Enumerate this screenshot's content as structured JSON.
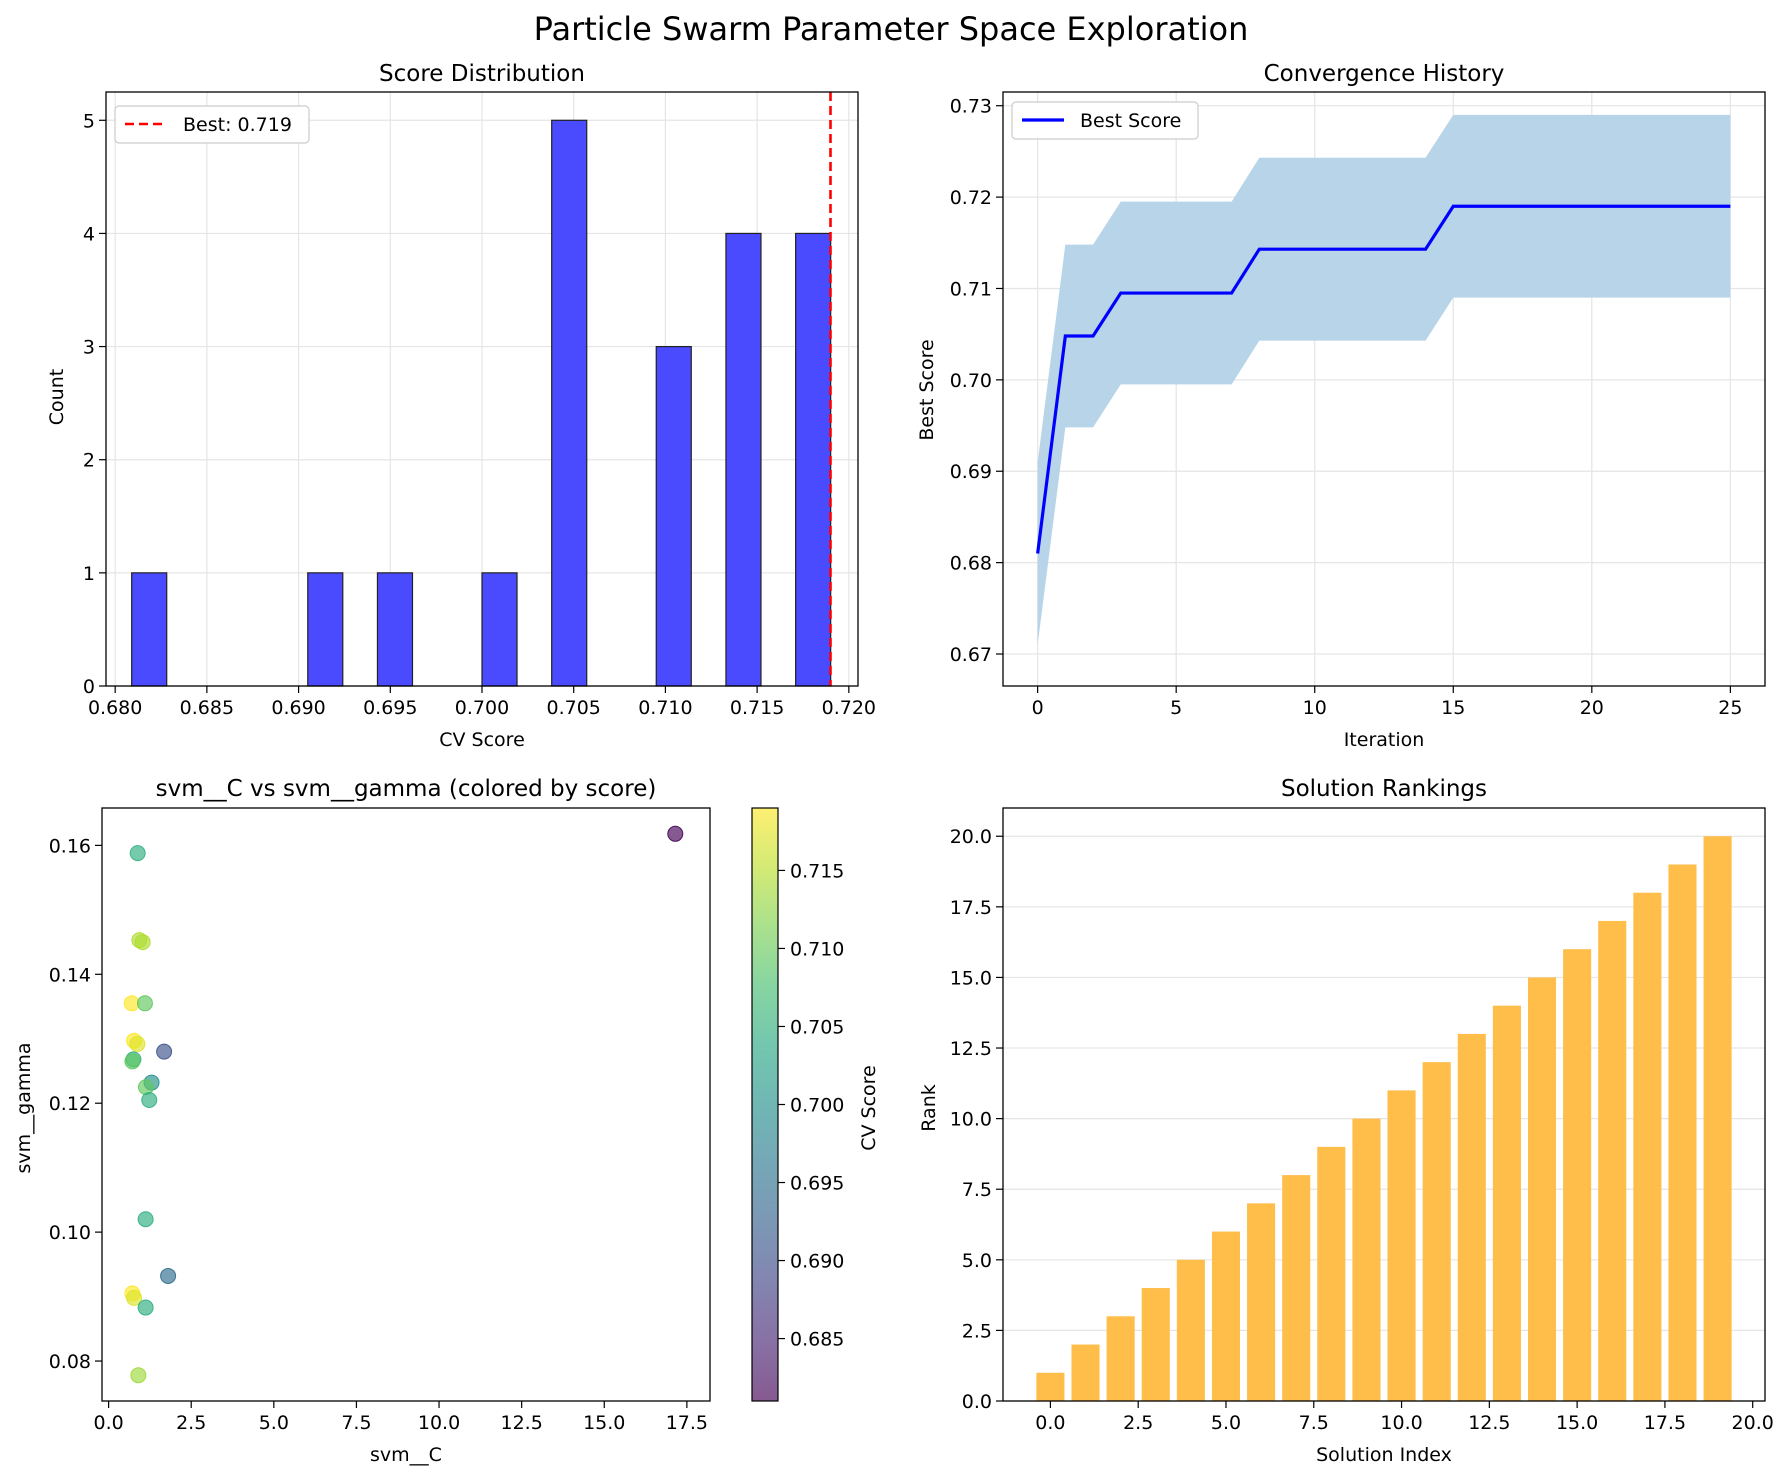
{
  "suptitle": "Particle Swarm Parameter Space Exploration",
  "colors": {
    "hist_bar": "#4a4aff",
    "best_line": "#ff0000",
    "conv_line": "#0000ff",
    "conv_band": "#b8d4e8",
    "rank_bar": "#ffbd4a",
    "grid": "#e5e5e5"
  },
  "chart_data": [
    {
      "id": "score-distribution",
      "type": "bar",
      "title": "Score Distribution",
      "xlabel": "CV Score",
      "ylabel": "Count",
      "xlim": [
        0.6795,
        0.7205
      ],
      "ylim": [
        0,
        5.25
      ],
      "xticks": [
        0.68,
        0.685,
        0.69,
        0.695,
        0.7,
        0.705,
        0.71,
        0.715,
        0.72
      ],
      "xtick_labels": [
        "0.680",
        "0.685",
        "0.690",
        "0.695",
        "0.700",
        "0.705",
        "0.710",
        "0.715",
        "0.720"
      ],
      "yticks": [
        0,
        1,
        2,
        3,
        4,
        5
      ],
      "ytick_labels": [
        "0",
        "1",
        "2",
        "3",
        "4",
        "5"
      ],
      "bin_width": 0.00191,
      "bins": [
        {
          "x": 0.6809,
          "count": 1
        },
        {
          "x": 0.6905,
          "count": 1
        },
        {
          "x": 0.6943,
          "count": 1
        },
        {
          "x": 0.7,
          "count": 1
        },
        {
          "x": 0.7038,
          "count": 5
        },
        {
          "x": 0.7095,
          "count": 3
        },
        {
          "x": 0.7133,
          "count": 4
        },
        {
          "x": 0.7171,
          "count": 4
        }
      ],
      "vline": {
        "x": 0.719,
        "label": "Best: 0.719"
      },
      "grid": true,
      "legend": "upper-left"
    },
    {
      "id": "convergence-history",
      "type": "line",
      "title": "Convergence History",
      "xlabel": "Iteration",
      "ylabel": "Best Score",
      "xlim": [
        -1.25,
        26.25
      ],
      "ylim": [
        0.6665,
        0.7315
      ],
      "xticks": [
        0,
        5,
        10,
        15,
        20,
        25
      ],
      "xtick_labels": [
        "0",
        "5",
        "10",
        "15",
        "20",
        "25"
      ],
      "yticks": [
        0.67,
        0.68,
        0.69,
        0.7,
        0.71,
        0.72,
        0.73
      ],
      "ytick_labels": [
        "0.67",
        "0.68",
        "0.69",
        "0.70",
        "0.71",
        "0.72",
        "0.73"
      ],
      "series": [
        {
          "name": "Best Score",
          "x": [
            0,
            1,
            2,
            3,
            4,
            5,
            6,
            7,
            8,
            9,
            10,
            11,
            12,
            13,
            14,
            15,
            16,
            17,
            18,
            19,
            20,
            21,
            22,
            23,
            24,
            25
          ],
          "y": [
            0.681,
            0.7048,
            0.7048,
            0.7095,
            0.7095,
            0.7095,
            0.7095,
            0.7095,
            0.7143,
            0.7143,
            0.7143,
            0.7143,
            0.7143,
            0.7143,
            0.7143,
            0.719,
            0.719,
            0.719,
            0.719,
            0.719,
            0.719,
            0.719,
            0.719,
            0.719,
            0.719,
            0.719
          ]
        }
      ],
      "band_halfwidth": 0.01,
      "grid": true,
      "legend": "upper-left"
    },
    {
      "id": "param-scatter",
      "type": "scatter",
      "title": "svm__C vs svm__gamma (colored by score)",
      "xlabel": "svm__C",
      "ylabel": "svm__gamma",
      "xlim": [
        -0.2,
        18.2
      ],
      "ylim": [
        0.0738,
        0.1658
      ],
      "xticks": [
        0.0,
        2.5,
        5.0,
        7.5,
        10.0,
        12.5,
        15.0,
        17.5
      ],
      "xtick_labels": [
        "0.0",
        "2.5",
        "5.0",
        "7.5",
        "10.0",
        "12.5",
        "15.0",
        "17.5"
      ],
      "yticks": [
        0.08,
        0.1,
        0.12,
        0.14,
        0.16
      ],
      "ytick_labels": [
        "0.08",
        "0.10",
        "0.12",
        "0.14",
        "0.16"
      ],
      "points": [
        {
          "x": 17.15,
          "y": 0.1618,
          "score": 0.681
        },
        {
          "x": 0.88,
          "y": 0.1588,
          "score": 0.7048
        },
        {
          "x": 0.93,
          "y": 0.1453,
          "score": 0.7143
        },
        {
          "x": 1.03,
          "y": 0.145,
          "score": 0.7143
        },
        {
          "x": 0.7,
          "y": 0.1355,
          "score": 0.719
        },
        {
          "x": 1.1,
          "y": 0.1355,
          "score": 0.7095
        },
        {
          "x": 0.77,
          "y": 0.1297,
          "score": 0.719
        },
        {
          "x": 0.87,
          "y": 0.1292,
          "score": 0.7171
        },
        {
          "x": 0.75,
          "y": 0.1268,
          "score": 0.7048
        },
        {
          "x": 0.72,
          "y": 0.1265,
          "score": 0.7095
        },
        {
          "x": 1.68,
          "y": 0.128,
          "score": 0.6905
        },
        {
          "x": 1.3,
          "y": 0.1232,
          "score": 0.7
        },
        {
          "x": 1.13,
          "y": 0.1225,
          "score": 0.7095
        },
        {
          "x": 1.23,
          "y": 0.1205,
          "score": 0.7048
        },
        {
          "x": 1.12,
          "y": 0.102,
          "score": 0.7048
        },
        {
          "x": 1.8,
          "y": 0.0932,
          "score": 0.6943
        },
        {
          "x": 0.72,
          "y": 0.0905,
          "score": 0.719
        },
        {
          "x": 0.77,
          "y": 0.0898,
          "score": 0.7171
        },
        {
          "x": 1.12,
          "y": 0.0883,
          "score": 0.7048
        },
        {
          "x": 0.9,
          "y": 0.0778,
          "score": 0.7133
        }
      ],
      "colorbar": {
        "label": "CV Score",
        "min": 0.681,
        "max": 0.719,
        "ticks": [
          0.685,
          0.69,
          0.695,
          0.7,
          0.705,
          0.71,
          0.715
        ],
        "tick_labels": [
          "0.685",
          "0.690",
          "0.695",
          "0.700",
          "0.705",
          "0.710",
          "0.715"
        ],
        "colormap": "viridis"
      }
    },
    {
      "id": "solution-rankings",
      "type": "bar",
      "title": "Solution Rankings",
      "xlabel": "Solution Index",
      "ylabel": "Rank",
      "xlim": [
        -1.35,
        20.35
      ],
      "ylim": [
        0,
        21
      ],
      "xticks": [
        0.0,
        2.5,
        5.0,
        7.5,
        10.0,
        12.5,
        15.0,
        17.5,
        20.0
      ],
      "xtick_labels": [
        "0.0",
        "2.5",
        "5.0",
        "7.5",
        "10.0",
        "12.5",
        "15.0",
        "17.5",
        "20.0"
      ],
      "yticks": [
        0.0,
        2.5,
        5.0,
        7.5,
        10.0,
        12.5,
        15.0,
        17.5,
        20.0
      ],
      "ytick_labels": [
        "0.0",
        "2.5",
        "5.0",
        "7.5",
        "10.0",
        "12.5",
        "15.0",
        "17.5",
        "20.0"
      ],
      "categories": [
        0,
        1,
        2,
        3,
        4,
        5,
        6,
        7,
        8,
        9,
        10,
        11,
        12,
        13,
        14,
        15,
        16,
        17,
        18,
        19
      ],
      "values": [
        1,
        2,
        3,
        4,
        5,
        6,
        7,
        8,
        9,
        10,
        11,
        12,
        13,
        14,
        15,
        16,
        17,
        18,
        19,
        20
      ],
      "grid": "y-only"
    }
  ]
}
